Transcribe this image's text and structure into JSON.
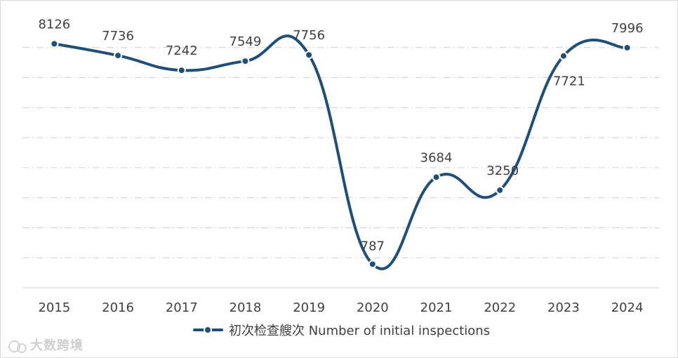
{
  "chart_data": {
    "type": "line",
    "x": [
      "2015",
      "2016",
      "2017",
      "2018",
      "2019",
      "2020",
      "2021",
      "2022",
      "2023",
      "2024"
    ],
    "series": [
      {
        "name": "初次检查艘次 Number of initial inspections",
        "values": [
          8126,
          7736,
          7242,
          7549,
          7756,
          787,
          3684,
          3250,
          7721,
          7996
        ],
        "data_labels": [
          "8126",
          "7736",
          "7242",
          "7549",
          "7756",
          "787",
          "3684",
          "3250",
          "7721",
          "7996"
        ],
        "color": "#1f4e79"
      }
    ],
    "ylim": [
      0,
      9000
    ],
    "grid": "horizontal-dash-dot",
    "legend_position": "bottom-center",
    "smooth": true
  },
  "watermark": {
    "text": "大数跨境",
    "icon": "watermark-logo-icon"
  }
}
